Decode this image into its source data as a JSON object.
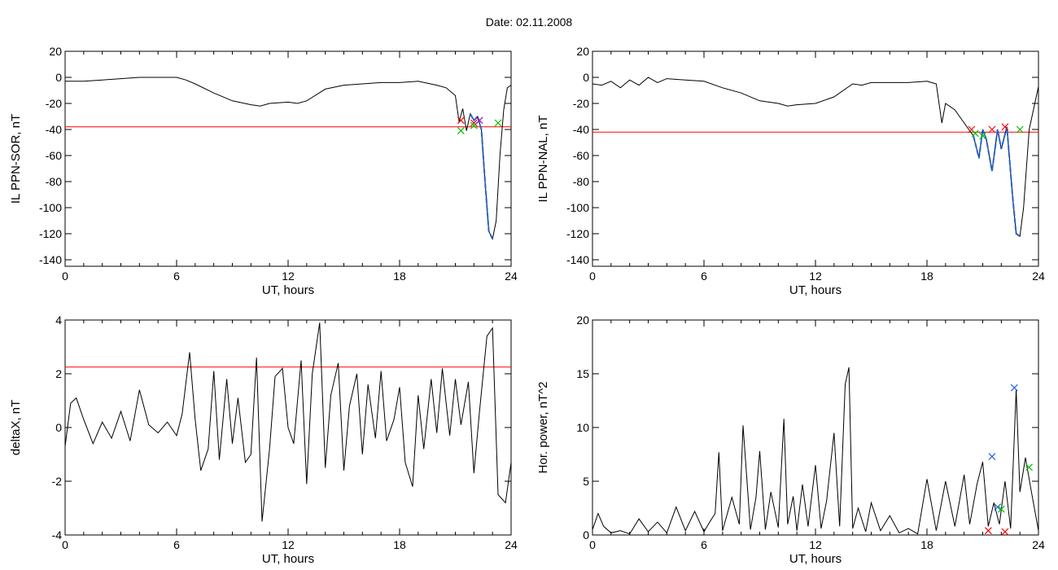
{
  "page": {
    "title": "Date:  02.11.2008"
  },
  "colors": {
    "threshold": "#ff0000",
    "trace": "#000000",
    "highlight": "#1e64dc",
    "marker_red": "#ff0000",
    "marker_green": "#00c000",
    "marker_purple": "#b000b0",
    "marker_blue": "#2060e0"
  },
  "chart_data": [
    {
      "id": "tl",
      "type": "line",
      "xlabel": "UT, hours",
      "ylabel": "IL PPN-SOR, nT",
      "xlim": [
        0,
        24
      ],
      "ylim": [
        -145,
        20
      ],
      "xticks": [
        "0",
        "6",
        "12",
        "18",
        "24"
      ],
      "xtick_values": [
        0,
        6,
        12,
        18,
        24
      ],
      "yticks": [
        "20",
        "0",
        "-20",
        "-40",
        "-60",
        "-80",
        "-100",
        "-120",
        "-140"
      ],
      "ytick_values": [
        20,
        0,
        -20,
        -40,
        -60,
        -80,
        -100,
        -120,
        -140
      ],
      "threshold": -38,
      "series": [
        {
          "x": [
            0,
            1,
            2,
            3,
            4,
            5,
            6,
            6.5,
            7,
            8,
            9,
            10,
            10.5,
            11,
            12,
            12.5,
            13,
            14,
            15,
            16,
            17,
            18,
            19,
            20,
            20.5,
            21,
            21.2,
            21.4,
            21.6,
            21.8,
            22,
            22.2,
            22.4,
            22.6,
            22.8,
            23,
            23.2,
            23.4,
            23.6,
            23.8,
            24
          ],
          "y": [
            -3,
            -3,
            -2,
            -1,
            0,
            0,
            0,
            -2,
            -5,
            -12,
            -18,
            -21,
            -22,
            -20,
            -19,
            -20,
            -18,
            -9,
            -6,
            -5,
            -4,
            -4,
            -3,
            -6,
            -8,
            -14,
            -34,
            -24,
            -41,
            -28,
            -33,
            -30,
            -40,
            -80,
            -118,
            -124,
            -110,
            -60,
            -25,
            -8,
            -6
          ]
        }
      ],
      "highlight_x": [
        21.8,
        23.1
      ],
      "markers": [
        {
          "x": 21.3,
          "y": -33,
          "color": "red"
        },
        {
          "x": 21.3,
          "y": -41,
          "color": "green"
        },
        {
          "x": 22.0,
          "y": -35,
          "color": "red"
        },
        {
          "x": 22.0,
          "y": -37,
          "color": "green"
        },
        {
          "x": 22.3,
          "y": -33,
          "color": "purple"
        },
        {
          "x": 23.3,
          "y": -35,
          "color": "green"
        }
      ]
    },
    {
      "id": "tr",
      "type": "line",
      "xlabel": "UT, hours",
      "ylabel": "IL PPN-NAL, nT",
      "xlim": [
        0,
        24
      ],
      "ylim": [
        -145,
        20
      ],
      "xticks": [
        "0",
        "6",
        "12",
        "18",
        "24"
      ],
      "xtick_values": [
        0,
        6,
        12,
        18,
        24
      ],
      "yticks": [
        "20",
        "0",
        "-20",
        "-40",
        "-60",
        "-80",
        "-100",
        "-120",
        "-140"
      ],
      "ytick_values": [
        20,
        0,
        -20,
        -40,
        -60,
        -80,
        -100,
        -120,
        -140
      ],
      "threshold": -42,
      "series": [
        {
          "x": [
            0,
            0.5,
            1,
            1.5,
            2,
            2.5,
            3,
            3.5,
            4,
            5,
            6,
            7,
            8,
            9,
            10,
            10.5,
            11,
            12,
            13,
            14,
            14.5,
            15,
            16,
            17,
            18,
            18.5,
            18.8,
            19,
            19.5,
            20,
            20.5,
            20.8,
            21,
            21.2,
            21.5,
            21.8,
            22,
            22.3,
            22.6,
            22.8,
            23,
            23.2,
            23.5,
            24
          ],
          "y": [
            -5,
            -6,
            -3,
            -8,
            -2,
            -6,
            0,
            -4,
            -1,
            -2,
            -3,
            -8,
            -12,
            -18,
            -20,
            -22,
            -21,
            -20,
            -15,
            -5,
            -6,
            -4,
            -4,
            -4,
            -3,
            -5,
            -35,
            -20,
            -25,
            -35,
            -45,
            -62,
            -40,
            -48,
            -72,
            -40,
            -55,
            -38,
            -90,
            -120,
            -122,
            -100,
            -40,
            -7
          ]
        }
      ],
      "highlight_x": [
        20.4,
        23.0
      ],
      "markers": [
        {
          "x": 20.4,
          "y": -40,
          "color": "red"
        },
        {
          "x": 20.6,
          "y": -43,
          "color": "green"
        },
        {
          "x": 21.0,
          "y": -45,
          "color": "green"
        },
        {
          "x": 21.5,
          "y": -40,
          "color": "red"
        },
        {
          "x": 22.2,
          "y": -38,
          "color": "red"
        },
        {
          "x": 23.0,
          "y": -40,
          "color": "green"
        }
      ]
    },
    {
      "id": "bl",
      "type": "line",
      "xlabel": "UT, hours",
      "ylabel": "deltaX, nT",
      "xlim": [
        0,
        24
      ],
      "ylim": [
        -4,
        4
      ],
      "xticks": [
        "0",
        "6",
        "12",
        "18",
        "24"
      ],
      "xtick_values": [
        0,
        6,
        12,
        18,
        24
      ],
      "yticks": [
        "4",
        "2",
        "0",
        "-2",
        "-4"
      ],
      "ytick_values": [
        4,
        2,
        0,
        -2,
        -4
      ],
      "threshold": 2.25,
      "series": [
        {
          "x": [
            0,
            0.3,
            0.6,
            1.0,
            1.5,
            2.0,
            2.5,
            3.0,
            3.5,
            4.0,
            4.5,
            5.0,
            5.5,
            6.0,
            6.3,
            6.7,
            7.0,
            7.3,
            7.7,
            8.0,
            8.3,
            8.7,
            9.0,
            9.3,
            9.7,
            10.0,
            10.3,
            10.6,
            11.0,
            11.3,
            11.7,
            12.0,
            12.3,
            12.7,
            13.0,
            13.3,
            13.7,
            14.0,
            14.3,
            14.7,
            15.0,
            15.3,
            15.7,
            16.0,
            16.3,
            16.7,
            17.0,
            17.3,
            17.7,
            18.0,
            18.3,
            18.7,
            19.0,
            19.3,
            19.7,
            20.0,
            20.3,
            20.7,
            21.0,
            21.3,
            21.7,
            22.0,
            22.3,
            22.7,
            23.0,
            23.3,
            23.7,
            24.0
          ],
          "y": [
            -0.7,
            0.9,
            1.1,
            0.3,
            -0.6,
            0.2,
            -0.4,
            0.6,
            -0.5,
            1.4,
            0.1,
            -0.2,
            0.2,
            -0.3,
            0.5,
            2.8,
            0.3,
            -1.6,
            -0.8,
            2.1,
            -1.2,
            1.8,
            -0.6,
            1.1,
            -1.3,
            -1.0,
            2.6,
            -3.5,
            -0.8,
            1.9,
            2.2,
            0.0,
            -0.6,
            2.5,
            -2.1,
            2.0,
            3.9,
            -1.5,
            1.2,
            2.4,
            -1.6,
            0.8,
            2.0,
            -1.0,
            1.6,
            -0.4,
            2.1,
            -0.5,
            0.3,
            1.5,
            -1.3,
            -2.2,
            1.2,
            -0.8,
            1.8,
            -0.2,
            2.2,
            -0.3,
            1.8,
            0.1,
            1.7,
            -1.7,
            0.6,
            3.4,
            3.7,
            -2.5,
            -2.8,
            -1.3
          ]
        }
      ]
    },
    {
      "id": "br",
      "type": "line",
      "xlabel": "UT, hours",
      "ylabel": "Hor. power, nT^2",
      "xlim": [
        0,
        24
      ],
      "ylim": [
        0,
        20
      ],
      "xticks": [
        "0",
        "6",
        "12",
        "18",
        "24"
      ],
      "xtick_values": [
        0,
        6,
        12,
        18,
        24
      ],
      "yticks": [
        "20",
        "15",
        "10",
        "5",
        "0"
      ],
      "ytick_values": [
        20,
        15,
        10,
        5,
        0
      ],
      "series": [
        {
          "x": [
            0,
            0.3,
            0.6,
            1.0,
            1.5,
            2.0,
            2.5,
            3.0,
            3.5,
            4.0,
            4.5,
            5.0,
            5.5,
            6.0,
            6.3,
            6.6,
            6.8,
            7.0,
            7.5,
            7.9,
            8.1,
            8.5,
            8.8,
            9.0,
            9.3,
            9.6,
            10.0,
            10.3,
            10.5,
            10.8,
            11.0,
            11.3,
            11.6,
            12.0,
            12.3,
            12.6,
            13.0,
            13.3,
            13.6,
            13.8,
            14.0,
            14.3,
            14.7,
            15.0,
            15.5,
            16.0,
            16.5,
            17.0,
            17.5,
            18.0,
            18.5,
            19.0,
            19.5,
            20.0,
            20.3,
            20.7,
            21.0,
            21.3,
            21.6,
            21.9,
            22.2,
            22.5,
            22.8,
            23.0,
            23.3,
            23.6,
            24.0
          ],
          "y": [
            0.5,
            2.0,
            0.8,
            0.2,
            0.4,
            0.1,
            1.5,
            0.3,
            1.2,
            0.2,
            2.6,
            0.4,
            2.2,
            0.3,
            1.2,
            2.0,
            7.7,
            0.4,
            3.5,
            1.0,
            10.2,
            0.5,
            3.5,
            7.8,
            0.5,
            4.0,
            0.7,
            10.8,
            1.0,
            3.6,
            0.4,
            4.7,
            0.8,
            6.5,
            0.6,
            3.2,
            9.5,
            0.8,
            14.0,
            15.6,
            0.6,
            2.5,
            0.3,
            3.0,
            0.4,
            1.8,
            0.2,
            0.6,
            0.1,
            5.2,
            0.4,
            5.0,
            0.8,
            5.6,
            1.0,
            4.8,
            6.8,
            0.8,
            3.0,
            1.0,
            5.0,
            0.6,
            13.5,
            4.0,
            7.2,
            4.2,
            0.4
          ]
        }
      ],
      "markers": [
        {
          "x": 21.5,
          "y": 7.3,
          "color": "blue"
        },
        {
          "x": 21.8,
          "y": 2.6,
          "color": "blue"
        },
        {
          "x": 22.0,
          "y": 2.4,
          "color": "green"
        },
        {
          "x": 21.3,
          "y": 0.4,
          "color": "red"
        },
        {
          "x": 22.2,
          "y": 0.3,
          "color": "red"
        },
        {
          "x": 22.7,
          "y": 13.7,
          "color": "blue"
        },
        {
          "x": 23.5,
          "y": 6.3,
          "color": "green"
        }
      ]
    }
  ]
}
